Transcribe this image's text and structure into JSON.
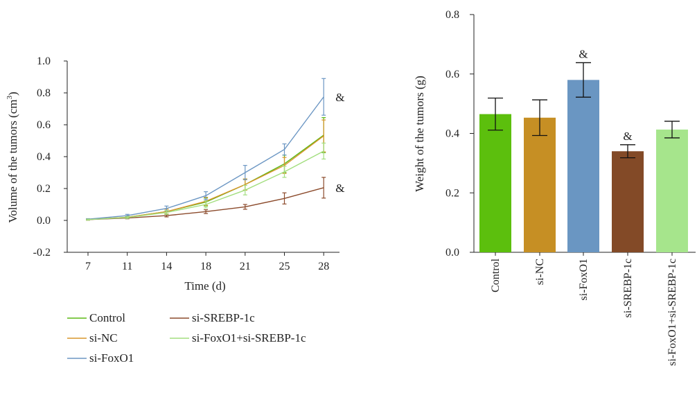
{
  "chart_data": [
    {
      "type": "line",
      "xlabel": "Time (d)",
      "ylabel": "Volume of the tumors (cm",
      "ylabel_sup": "3",
      "ylabel_close": ")",
      "x": [
        7,
        11,
        14,
        18,
        21,
        25,
        28
      ],
      "x_tick_labels": [
        "7",
        "11",
        "14",
        "18",
        "21",
        "25",
        "28"
      ],
      "ylim": [
        -0.2,
        1.0
      ],
      "y_ticks": [
        -0.2,
        0.0,
        0.2,
        0.4,
        0.6,
        0.8,
        1.0
      ],
      "y_tick_labels": [
        "-0.2",
        "0.0",
        "0.2",
        "0.4",
        "0.6",
        "0.8",
        "1.0"
      ],
      "grid": false,
      "legend_position": "bottom",
      "series": [
        {
          "name": "Control",
          "color": "#5cb815",
          "values": [
            0.005,
            0.02,
            0.055,
            0.115,
            0.225,
            0.355,
            0.535
          ],
          "errors": [
            0.003,
            0.006,
            0.015,
            0.025,
            0.035,
            0.055,
            0.11
          ]
        },
        {
          "name": "si-NC",
          "color": "#d9952b",
          "values": [
            0.005,
            0.02,
            0.055,
            0.12,
            0.225,
            0.345,
            0.53
          ],
          "errors": [
            0.003,
            0.006,
            0.015,
            0.025,
            0.035,
            0.05,
            0.1
          ]
        },
        {
          "name": "si-FoxO1",
          "color": "#6b96c3",
          "values": [
            0.008,
            0.03,
            0.075,
            0.155,
            0.3,
            0.445,
            0.775
          ],
          "errors": [
            0.003,
            0.008,
            0.015,
            0.025,
            0.045,
            0.035,
            0.115
          ]
        },
        {
          "name": "si-SREBP-1c",
          "color": "#8b4a2b",
          "values": [
            0.005,
            0.015,
            0.03,
            0.055,
            0.085,
            0.138,
            0.205
          ],
          "errors": [
            0.003,
            0.005,
            0.008,
            0.012,
            0.015,
            0.035,
            0.065
          ]
        },
        {
          "name": "si-FoxO1+si-SREBP-1c",
          "color": "#a2de7e",
          "values": [
            0.005,
            0.018,
            0.05,
            0.1,
            0.19,
            0.305,
            0.435
          ],
          "errors": [
            0.003,
            0.006,
            0.012,
            0.022,
            0.03,
            0.035,
            0.05
          ]
        }
      ],
      "annotations": [
        {
          "text": "&",
          "x": 28,
          "y": 0.775
        },
        {
          "text": "&",
          "x": 28,
          "y": 0.205
        }
      ]
    },
    {
      "type": "bar",
      "ylabel": "Weight of the tumors (g)",
      "categories": [
        "Control",
        "si-NC",
        "si-FoxO1",
        "si-SREBP-1c",
        "si-FoxO1+si-SREBP-1c"
      ],
      "values": [
        0.465,
        0.453,
        0.58,
        0.34,
        0.413
      ],
      "errors": [
        0.054,
        0.06,
        0.058,
        0.022,
        0.028
      ],
      "colors": [
        "#5cbf0d",
        "#c68f24",
        "#6a96c2",
        "#834a27",
        "#a6e58c"
      ],
      "ylim": [
        0,
        0.8
      ],
      "y_ticks": [
        0,
        0.2,
        0.4,
        0.6,
        0.8
      ],
      "y_tick_labels": [
        "0.0",
        "0.2",
        "0.4",
        "0.6",
        "0.8"
      ],
      "annotations": [
        {
          "category": "si-FoxO1",
          "text": "&"
        },
        {
          "category": "si-SREBP-1c",
          "text": "&"
        }
      ]
    }
  ]
}
